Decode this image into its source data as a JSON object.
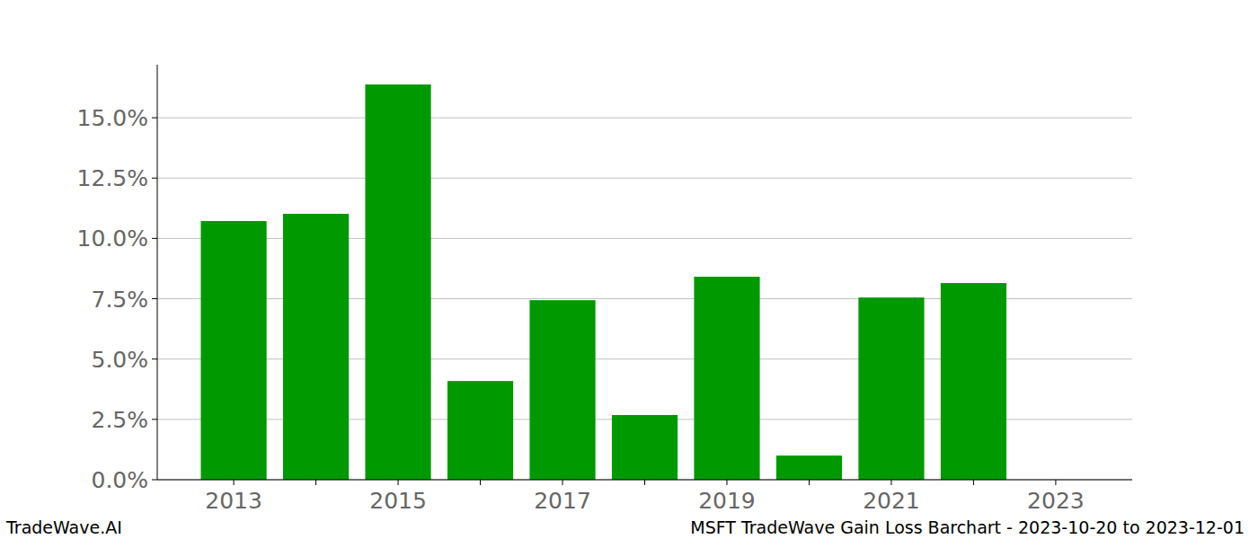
{
  "chart_data": {
    "type": "bar",
    "title": "MSFT TradeWave Gain Loss Barchart - 2023-10-20 to 2023-12-01",
    "annotations": [
      "TradeWave.AI"
    ],
    "categories": [
      "2013",
      null,
      "2015",
      null,
      "2017",
      null,
      "2019",
      null,
      "2021",
      null,
      "2023"
    ],
    "values": [
      10.72,
      11.02,
      16.38,
      4.09,
      7.44,
      2.68,
      8.41,
      1.0,
      7.55,
      8.15,
      0
    ],
    "color": "#009900",
    "ylim": [
      0,
      17.2
    ],
    "yticks": [
      {
        "value": 0,
        "label": "0.0%"
      },
      {
        "value": 2.5,
        "label": "2.5%"
      },
      {
        "value": 5,
        "label": "5.0%"
      },
      {
        "value": 7.5,
        "label": "7.5%"
      },
      {
        "value": 10,
        "label": "10.0%"
      },
      {
        "value": 12.5,
        "label": "12.5%"
      },
      {
        "value": 15,
        "label": "15.0%"
      }
    ],
    "grid": true
  }
}
